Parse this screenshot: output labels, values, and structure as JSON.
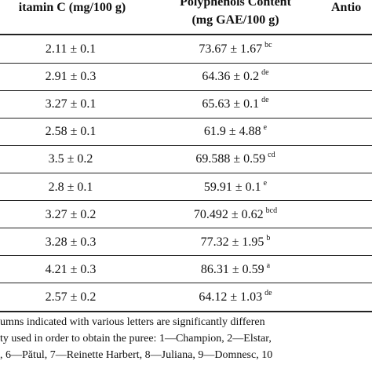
{
  "header": {
    "col1": "itamin C (mg/100 g)",
    "col2_line1": "Polyphenols Content",
    "col2_line2": "(mg GAE/100 g)",
    "col3": "Antio"
  },
  "rows": [
    {
      "vitc": "2.11 ± 0.1",
      "poly": "73.67 ± 1.67",
      "poly_sup": "bc"
    },
    {
      "vitc": "2.91 ± 0.3",
      "poly": "64.36 ± 0.2",
      "poly_sup": "de"
    },
    {
      "vitc": "3.27 ± 0.1",
      "poly": "65.63 ± 0.1",
      "poly_sup": "de"
    },
    {
      "vitc": "2.58 ± 0.1",
      "poly": "61.9 ± 4.88",
      "poly_sup": "e"
    },
    {
      "vitc": "3.5 ± 0.2",
      "poly": "69.588 ± 0.59",
      "poly_sup": "cd"
    },
    {
      "vitc": "2.8 ± 0.1",
      "poly": "59.91 ± 0.1",
      "poly_sup": "e"
    },
    {
      "vitc": "3.27 ± 0.2",
      "poly": "70.492 ± 0.62",
      "poly_sup": "bcd"
    },
    {
      "vitc": "3.28 ± 0.3",
      "poly": "77.32 ± 1.95",
      "poly_sup": "b"
    },
    {
      "vitc": "4.21 ± 0.3",
      "poly": "86.31 ± 0.59",
      "poly_sup": "a"
    },
    {
      "vitc": "2.57 ± 0.2",
      "poly": "64.12 ± 1.03",
      "poly_sup": "de"
    }
  ],
  "footnote": {
    "line1": "umns indicated with various letters are significantly differen",
    "line2": "ty used in order to obtain the puree: 1—Champion, 2—Elstar,",
    "line3": ", 6—Pătul, 7—Reinette Harbert, 8—Juliana, 9—Domnesc, 10"
  }
}
